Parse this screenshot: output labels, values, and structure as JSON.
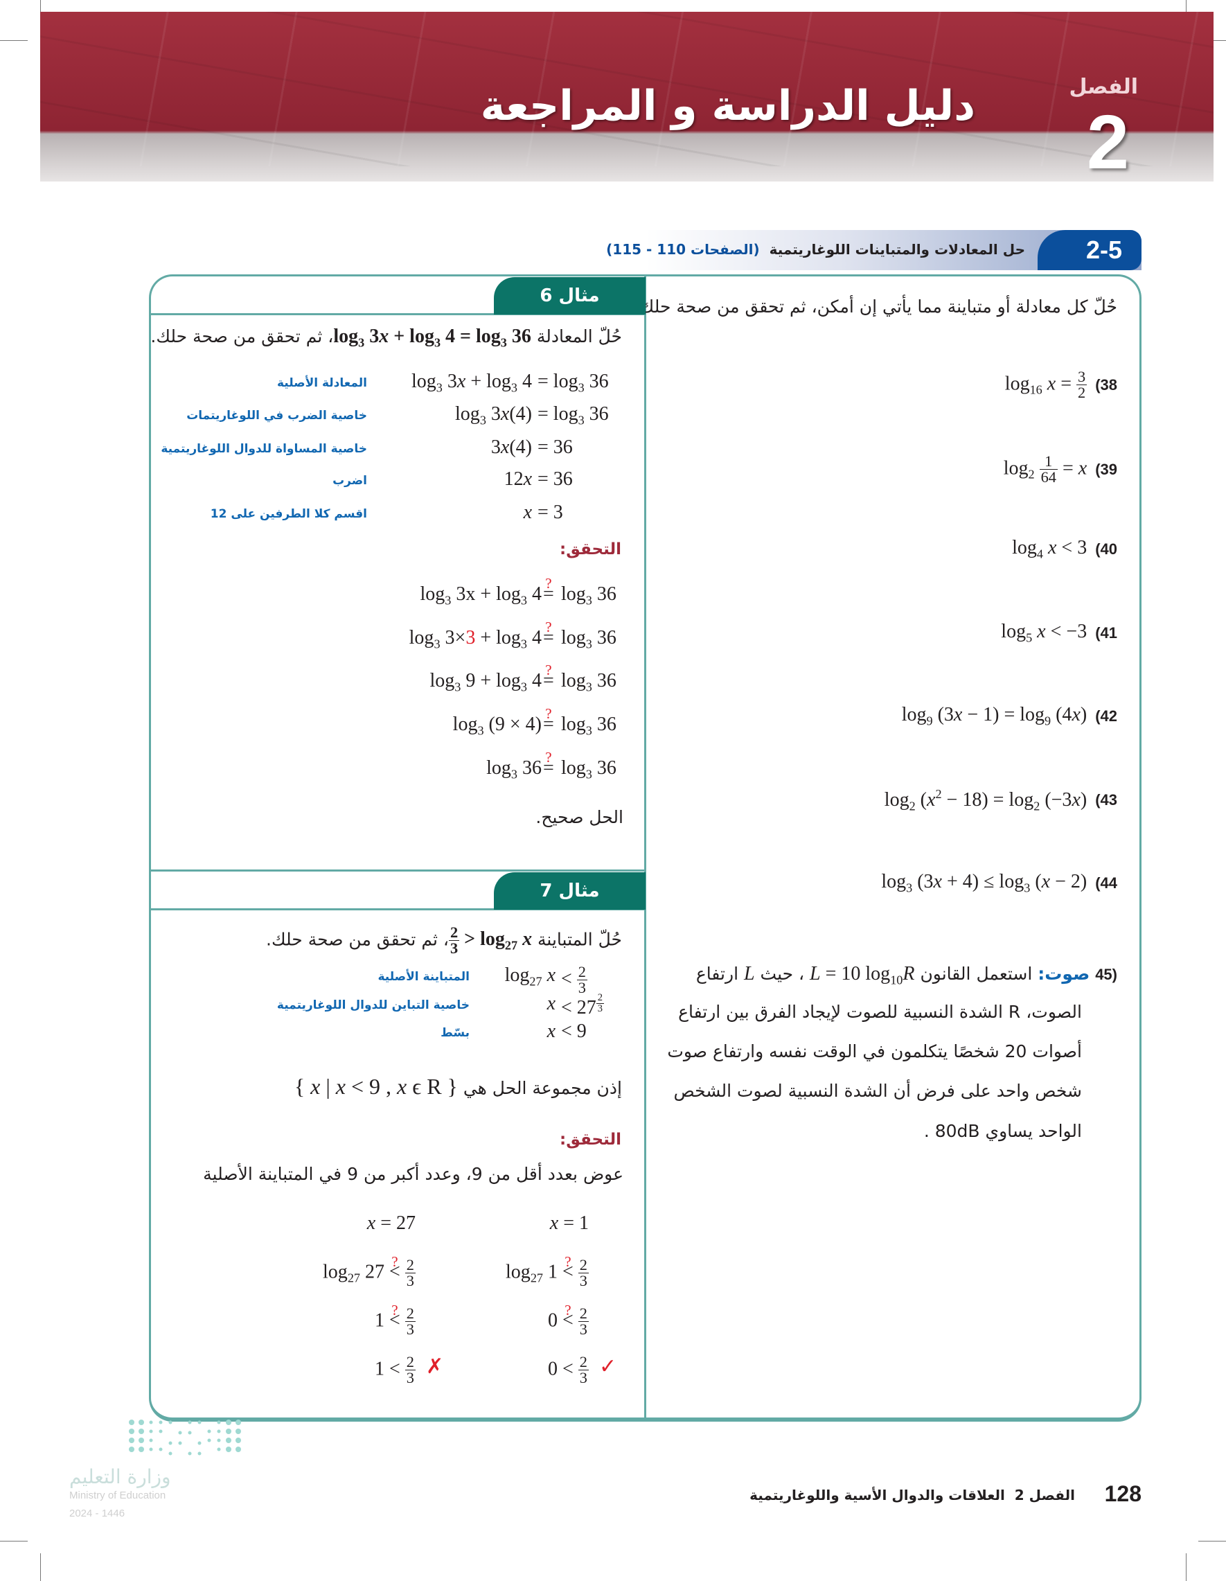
{
  "header": {
    "title": "دليل الدراسة و المراجعة",
    "chapter_label": "الفصل",
    "chapter_number": "2",
    "brand_color": "#9e2a3a"
  },
  "section": {
    "number": "2-5",
    "title": "حل المعادلات والمتباينات اللوغاريتمية",
    "pages": "(الصفحات 110 - 115)",
    "color": "#0b4f9c"
  },
  "exercises": {
    "instruction": "حُلّ كل معادلة أو متباينة مما يأتي إن أمكن، ثم تحقق من صحة حلك:",
    "items": [
      {
        "num": "(38",
        "math": "log_{16} [x] = \\f{3}{2}"
      },
      {
        "num": "(39",
        "math": "log_{2} \\f{1}{64} = [x]"
      },
      {
        "num": "(40",
        "math": "log_{4} [x] < 3"
      },
      {
        "num": "(41",
        "math": "log_{5} [x] < −3"
      },
      {
        "num": "(42",
        "math": "log_{9} (3[x] − 1) = log_{9} (4[x])"
      },
      {
        "num": "(43",
        "math": "log_{2} ([x]^{2} − 18) = log_{2} (−3[x])"
      },
      {
        "num": "(44",
        "math": "log_{3} (3[x] + 4) ≤ log_{3} ([x] − 2)"
      }
    ],
    "q45": {
      "num": "(45",
      "topic": "صوت:",
      "line1a": "استعمل القانون",
      "line1m": "[L] = 10 log_{10}[R]",
      "line1b": "، حيث",
      "line1v": "[L]",
      "line1c": "ارتفاع",
      "lines": [
        "الصوت، R الشدة النسبية للصوت لإيجاد الفرق بين ارتفاع",
        "أصوات 20 شخصًا يتكلمون في الوقت نفسه وارتفاع صوت",
        "شخص واحد على فرض أن الشدة النسبية لصوت الشخص",
        "الواحد يساوي 80dB ."
      ]
    }
  },
  "example6": {
    "tab": "مثال 6",
    "prompt_a": "حُلّ المعادلة",
    "prompt_m": "log_{3} 3[x] + log_{3} 4 = log_{3} 36",
    "prompt_b": "، ثم تحقق من صحة حلك.",
    "steps": [
      {
        "lhs": "log_{3} 3[x] + log_{3} 4",
        "rhs": "= log_{3} 36",
        "label": "المعادلة الأصلية"
      },
      {
        "lhs": "log_{3} 3[x](4)",
        "rhs": "= log_{3} 36",
        "label": "خاصية الضرب في اللوغاريتمات"
      },
      {
        "lhs": "3[x](4)",
        "rhs": "= 36",
        "label": "خاصية المساواة للدوال اللوغاريتمية"
      },
      {
        "lhs": "12[x]",
        "rhs": "= 36",
        "label": "اضرب"
      },
      {
        "lhs": "[x]",
        "rhs": "= 3",
        "label": "اقسم كلا الطرفين على 12"
      }
    ],
    "check_title": "التحقق:",
    "checks": [
      {
        "lhs": "log_{3} 3x + log_{3} 4",
        "rhs": "log_{3} 36"
      },
      {
        "lhs": "log_{3} 3×!{3} + log_{3} 4",
        "rhs": "log_{3} 36"
      },
      {
        "lhs": "log_{3} 9 + log_{3} 4",
        "rhs": "log_{3} 36"
      },
      {
        "lhs": "log_{3} (9 × 4)",
        "rhs": "log_{3} 36"
      },
      {
        "lhs": "log_{3} 36",
        "rhs": "log_{3} 36"
      }
    ],
    "conclusion": "الحل صحيح."
  },
  "example7": {
    "tab": "مثال 7",
    "prompt_a": "حُلّ المتباينة",
    "prompt_m": "log_{27} [x] < \\f{2}{3}",
    "prompt_b": "، ثم تحقق من صحة حلك.",
    "steps": [
      {
        "lhs": "log_{27} [x]",
        "rhs": "< \\f{2}{3}",
        "label": "المتباينة الأصلية"
      },
      {
        "lhs": "[x]",
        "rhs": "< 27^{\\f{2}{3}}",
        "label": "خاصية التباين للدوال اللوغاريتمية"
      },
      {
        "lhs": "[x]",
        "rhs": "< 9",
        "label": "بسّط"
      }
    ],
    "solution_text": "إذن مجموعة الحل هي",
    "solution_set": "{ [x] | [x] < 9 , [x] ϵ R }",
    "check_title": "التحقق:",
    "substitute": "عوض بعدد أقل من 9، وعدد أكبر من 9 في المتباينة الأصلية",
    "col_right": [
      "[x] = 1",
      "log_{27} 1 ?< \\f{2}{3}",
      "0 ?< \\f{2}{3}",
      "0 < \\f{2}{3}"
    ],
    "col_left": [
      "[x] = 27",
      "log_{27} 27 ?< \\f{2}{3}",
      "1 ?< \\f{2}{3}",
      "1 < \\f{2}{3}"
    ],
    "mark_right": "✓",
    "mark_left": "✗"
  },
  "footer": {
    "page": "128",
    "chapter": "الفصل 2",
    "chapter_title": "العلاقات والدوال الأسية واللوغاريتمية",
    "ministry_ar": "وزارة التعليم",
    "ministry_en": "Ministry of Education",
    "year": "2024 - 1446"
  }
}
